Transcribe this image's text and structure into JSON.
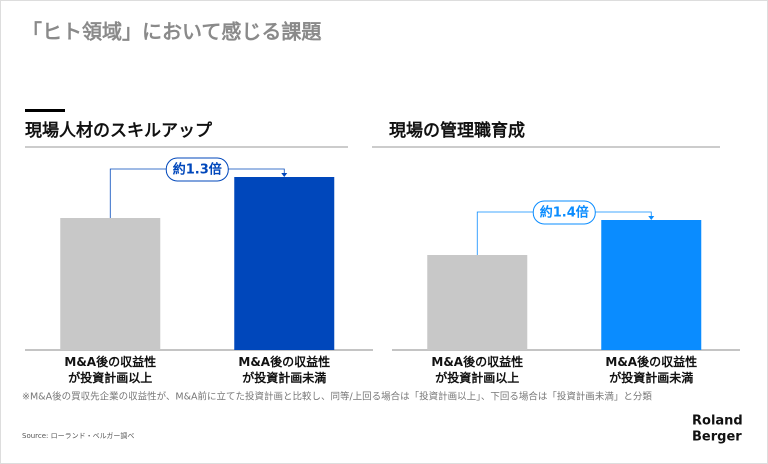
{
  "title": "「ヒト領域」において感じる課題",
  "chart_data": [
    {
      "type": "bar",
      "title": "現場人材のスキルアップ",
      "categories": [
        "M&A後の収益性\nが投資計画以上",
        "M&A後の収益性\nが投資計画未満"
      ],
      "values": [
        132,
        173
      ],
      "colors": [
        "#c8c8c8",
        "#0047bb"
      ],
      "ylim": [
        0,
        180
      ],
      "annotation": "約1.3倍"
    },
    {
      "type": "bar",
      "title": "現場の管理職育成",
      "categories": [
        "M&A後の収益性\nが投資計画以上",
        "M&A後の収益性\nが投資計画未満"
      ],
      "values": [
        95,
        130
      ],
      "colors": [
        "#c8c8c8",
        "#0a8cff"
      ],
      "ylim": [
        0,
        180
      ],
      "annotation": "約1.4倍"
    }
  ],
  "note": "※M&A後の買収先企業の収益性が、M&A前に立てた投資計画と比較し、同等/上回る場合は「投資計画以上」、下回る場合は「投資計画未満」と分類",
  "source": "Source: ローランド・ベルガー調べ",
  "brand": [
    "Roland",
    "Berger"
  ]
}
